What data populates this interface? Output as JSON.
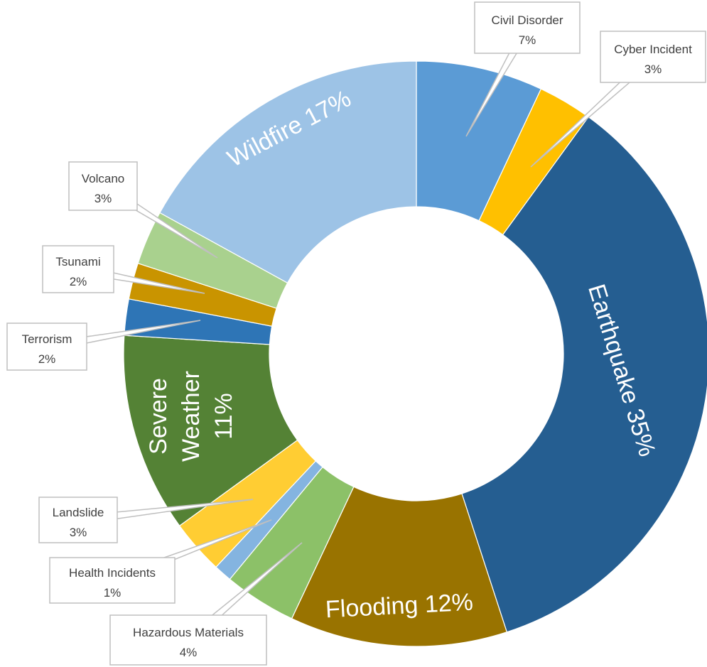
{
  "chart_data": {
    "type": "pie",
    "variant": "donut",
    "title": "",
    "slices": [
      {
        "key": "civil_disorder",
        "label": "Civil Disorder",
        "value": 7,
        "display": "7%",
        "color": "#5B9BD5"
      },
      {
        "key": "cyber_incident",
        "label": "Cyber Incident",
        "value": 3,
        "display": "3%",
        "color": "#FFC000"
      },
      {
        "key": "earthquake",
        "label": "Earthquake",
        "value": 35,
        "display": "35%",
        "color": "#255E91"
      },
      {
        "key": "flooding",
        "label": "Flooding",
        "value": 12,
        "display": "12%",
        "color": "#997300"
      },
      {
        "key": "hazardous_materials",
        "label": "Hazardous Materials",
        "value": 4,
        "display": "4%",
        "color": "#8CC168"
      },
      {
        "key": "health_incidents",
        "label": "Health Incidents",
        "value": 1,
        "display": "1%",
        "color": "#84B4E0"
      },
      {
        "key": "landslide",
        "label": "Landslide",
        "value": 3,
        "display": "3%",
        "color": "#FFCD33"
      },
      {
        "key": "severe_weather",
        "label": "Severe Weather",
        "value": 11,
        "display": "11%",
        "color": "#548235"
      },
      {
        "key": "terrorism",
        "label": "Terrorism",
        "value": 2,
        "display": "2%",
        "color": "#2E75B6"
      },
      {
        "key": "tsunami",
        "label": "Tsunami",
        "value": 2,
        "display": "2%",
        "color": "#C99400"
      },
      {
        "key": "volcano",
        "label": "Volcano",
        "value": 3,
        "display": "3%",
        "color": "#A9D18E"
      },
      {
        "key": "wildfire",
        "label": "Wildfire",
        "value": 17,
        "display": "17%",
        "color": "#9DC3E6"
      }
    ],
    "inside_labels": {
      "earthquake": "Earthquake 35%",
      "flooding": "Flooding 12%",
      "wildfire": "Wildfire 17%",
      "severe_weather": [
        "Severe",
        "Weather",
        "11%"
      ]
    },
    "callouts": {
      "civil_disorder": [
        "Civil Disorder",
        "7%"
      ],
      "cyber_incident": [
        "Cyber Incident",
        "3%"
      ],
      "volcano": [
        "Volcano",
        "3%"
      ],
      "tsunami": [
        "Tsunami",
        "2%"
      ],
      "terrorism": [
        "Terrorism",
        "2%"
      ],
      "landslide": [
        "Landslide",
        "3%"
      ],
      "health_incidents": [
        "Health Incidents",
        "1%"
      ],
      "hazardous_materials": [
        "Hazardous Materials",
        "4%"
      ]
    }
  }
}
